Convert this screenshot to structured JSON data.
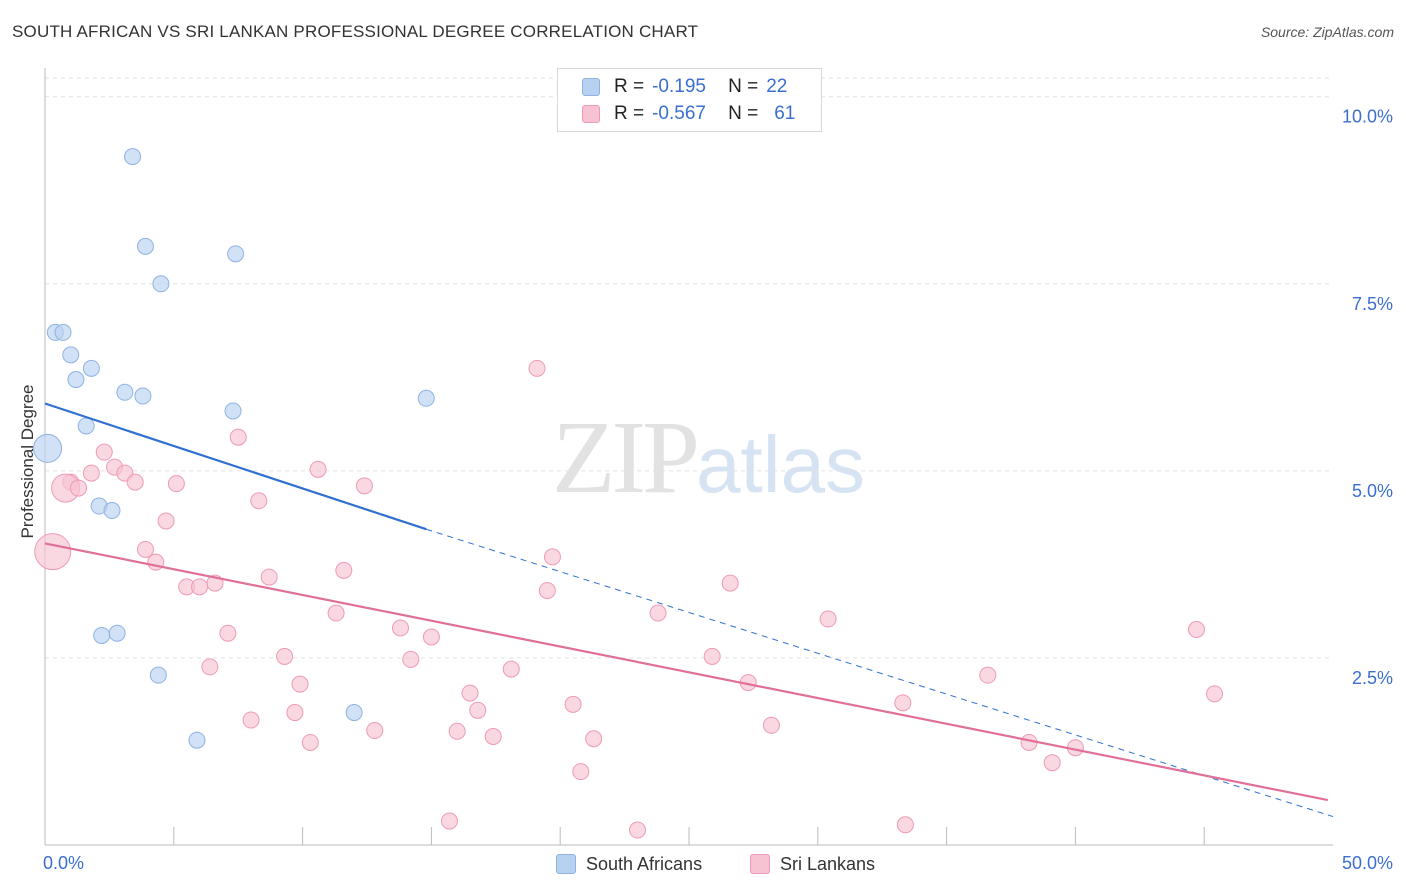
{
  "header": {
    "title": "SOUTH AFRICAN VS SRI LANKAN PROFESSIONAL DEGREE CORRELATION CHART",
    "source": "Source: ZipAtlas.com"
  },
  "legend": {
    "rows": [
      {
        "r_label": "R =",
        "r_value": "-0.195",
        "n_label": "N =",
        "n_value": "22"
      },
      {
        "r_label": "R =",
        "r_value": "-0.567",
        "n_label": "N =",
        "n_value": "61"
      }
    ]
  },
  "bottom_legend": {
    "south_africans": "South Africans",
    "sri_lankans": "Sri Lankans"
  },
  "watermark": {
    "zip": "ZIP",
    "atlas": "atlas"
  },
  "colors": {
    "blue_fill": "#b9d1f1",
    "blue_stroke": "#8fb2e3",
    "blue_line": "#3070d0",
    "pink_fill": "#f7c3d3",
    "pink_stroke": "#ee9ab5",
    "pink_line": "#e0709a",
    "grid": "#e2e2e2",
    "tick_label": "#3a6fd0"
  },
  "chart_data": {
    "type": "scatter",
    "title": "SOUTH AFRICAN VS SRI LANKAN PROFESSIONAL DEGREE CORRELATION CHART",
    "xlabel": "",
    "ylabel": "Professional Degree",
    "xlim": [
      0,
      50
    ],
    "ylim": [
      0,
      10.25
    ],
    "x_tick_labels": [
      {
        "value": 0,
        "label": "0.0%"
      },
      {
        "value": 50,
        "label": "50.0%"
      }
    ],
    "y_tick_labels": [
      {
        "value": 2.5,
        "label": "2.5%"
      },
      {
        "value": 5.0,
        "label": "5.0%"
      },
      {
        "value": 7.5,
        "label": "7.5%"
      },
      {
        "value": 10.0,
        "label": "10.0%"
      }
    ],
    "grid": true,
    "series": [
      {
        "name": "South Africans",
        "color": "blue",
        "r": -0.195,
        "n": 22,
        "trend": {
          "x0": 0,
          "y0": 5.9,
          "x1": 14.8,
          "y1": 4.22,
          "dash_to_x": 50,
          "dash_to_y": 0.38
        },
        "points": [
          {
            "x": 3.4,
            "y": 9.2,
            "s": 1
          },
          {
            "x": 3.9,
            "y": 8.0,
            "s": 1
          },
          {
            "x": 7.4,
            "y": 7.9,
            "s": 1
          },
          {
            "x": 4.5,
            "y": 7.5,
            "s": 1
          },
          {
            "x": 0.4,
            "y": 6.85,
            "s": 1
          },
          {
            "x": 0.7,
            "y": 6.85,
            "s": 1
          },
          {
            "x": 1.0,
            "y": 6.55,
            "s": 1
          },
          {
            "x": 1.8,
            "y": 6.37,
            "s": 1
          },
          {
            "x": 1.2,
            "y": 6.22,
            "s": 1
          },
          {
            "x": 3.1,
            "y": 6.05,
            "s": 1
          },
          {
            "x": 3.8,
            "y": 6.0,
            "s": 1
          },
          {
            "x": 14.8,
            "y": 5.97,
            "s": 1
          },
          {
            "x": 7.3,
            "y": 5.8,
            "s": 1
          },
          {
            "x": 1.6,
            "y": 5.6,
            "s": 1
          },
          {
            "x": 0.1,
            "y": 5.3,
            "s": 2
          },
          {
            "x": 2.1,
            "y": 4.53,
            "s": 1
          },
          {
            "x": 2.6,
            "y": 4.47,
            "s": 1
          },
          {
            "x": 2.8,
            "y": 2.83,
            "s": 1
          },
          {
            "x": 2.2,
            "y": 2.8,
            "s": 1
          },
          {
            "x": 4.4,
            "y": 2.27,
            "s": 1
          },
          {
            "x": 12.0,
            "y": 1.77,
            "s": 1
          },
          {
            "x": 5.9,
            "y": 1.4,
            "s": 1
          }
        ]
      },
      {
        "name": "Sri Lankans",
        "color": "pink",
        "r": -0.567,
        "n": 61,
        "trend": {
          "x0": 0,
          "y0": 4.03,
          "x1": 49.8,
          "y1": 0.6
        },
        "points": [
          {
            "x": 19.1,
            "y": 6.37,
            "s": 1
          },
          {
            "x": 7.5,
            "y": 5.45,
            "s": 1
          },
          {
            "x": 2.3,
            "y": 5.25,
            "s": 1
          },
          {
            "x": 2.7,
            "y": 5.05,
            "s": 1
          },
          {
            "x": 10.6,
            "y": 5.02,
            "s": 1
          },
          {
            "x": 3.1,
            "y": 4.97,
            "s": 1
          },
          {
            "x": 1.8,
            "y": 4.97,
            "s": 1
          },
          {
            "x": 1.0,
            "y": 4.85,
            "s": 1
          },
          {
            "x": 3.5,
            "y": 4.85,
            "s": 1
          },
          {
            "x": 5.1,
            "y": 4.83,
            "s": 1
          },
          {
            "x": 12.4,
            "y": 4.8,
            "s": 1
          },
          {
            "x": 0.8,
            "y": 4.77,
            "s": 2
          },
          {
            "x": 1.3,
            "y": 4.77,
            "s": 1
          },
          {
            "x": 8.3,
            "y": 4.6,
            "s": 1
          },
          {
            "x": 4.7,
            "y": 4.33,
            "s": 1
          },
          {
            "x": 3.9,
            "y": 3.95,
            "s": 1
          },
          {
            "x": 0.3,
            "y": 3.92,
            "s": 3
          },
          {
            "x": 19.7,
            "y": 3.85,
            "s": 1
          },
          {
            "x": 4.3,
            "y": 3.78,
            "s": 1
          },
          {
            "x": 11.6,
            "y": 3.67,
            "s": 1
          },
          {
            "x": 8.7,
            "y": 3.58,
            "s": 1
          },
          {
            "x": 26.6,
            "y": 3.5,
            "s": 1
          },
          {
            "x": 6.6,
            "y": 3.5,
            "s": 1
          },
          {
            "x": 5.5,
            "y": 3.45,
            "s": 1
          },
          {
            "x": 6.0,
            "y": 3.45,
            "s": 1
          },
          {
            "x": 19.5,
            "y": 3.4,
            "s": 1
          },
          {
            "x": 23.8,
            "y": 3.1,
            "s": 1
          },
          {
            "x": 11.3,
            "y": 3.1,
            "s": 1
          },
          {
            "x": 30.4,
            "y": 3.02,
            "s": 1
          },
          {
            "x": 13.8,
            "y": 2.9,
            "s": 1
          },
          {
            "x": 44.7,
            "y": 2.88,
            "s": 1
          },
          {
            "x": 7.1,
            "y": 2.83,
            "s": 1
          },
          {
            "x": 15.0,
            "y": 2.78,
            "s": 1
          },
          {
            "x": 9.3,
            "y": 2.52,
            "s": 1
          },
          {
            "x": 25.9,
            "y": 2.52,
            "s": 1
          },
          {
            "x": 14.2,
            "y": 2.48,
            "s": 1
          },
          {
            "x": 6.4,
            "y": 2.38,
            "s": 1
          },
          {
            "x": 18.1,
            "y": 2.35,
            "s": 1
          },
          {
            "x": 36.6,
            "y": 2.27,
            "s": 1
          },
          {
            "x": 27.3,
            "y": 2.17,
            "s": 1
          },
          {
            "x": 9.9,
            "y": 2.15,
            "s": 1
          },
          {
            "x": 16.5,
            "y": 2.03,
            "s": 1
          },
          {
            "x": 45.4,
            "y": 2.02,
            "s": 1
          },
          {
            "x": 20.5,
            "y": 1.88,
            "s": 1
          },
          {
            "x": 33.3,
            "y": 1.9,
            "s": 1
          },
          {
            "x": 16.8,
            "y": 1.8,
            "s": 1
          },
          {
            "x": 9.7,
            "y": 1.77,
            "s": 1
          },
          {
            "x": 8.0,
            "y": 1.67,
            "s": 1
          },
          {
            "x": 28.2,
            "y": 1.6,
            "s": 1
          },
          {
            "x": 12.8,
            "y": 1.53,
            "s": 1
          },
          {
            "x": 16.0,
            "y": 1.52,
            "s": 1
          },
          {
            "x": 17.4,
            "y": 1.45,
            "s": 1
          },
          {
            "x": 21.3,
            "y": 1.42,
            "s": 1
          },
          {
            "x": 10.3,
            "y": 1.37,
            "s": 1
          },
          {
            "x": 38.2,
            "y": 1.37,
            "s": 1
          },
          {
            "x": 40.0,
            "y": 1.3,
            "s": 1
          },
          {
            "x": 39.1,
            "y": 1.1,
            "s": 1
          },
          {
            "x": 20.8,
            "y": 0.98,
            "s": 1
          },
          {
            "x": 15.7,
            "y": 0.32,
            "s": 1
          },
          {
            "x": 33.4,
            "y": 0.27,
            "s": 1
          },
          {
            "x": 23.0,
            "y": 0.2,
            "s": 1
          }
        ]
      }
    ]
  }
}
